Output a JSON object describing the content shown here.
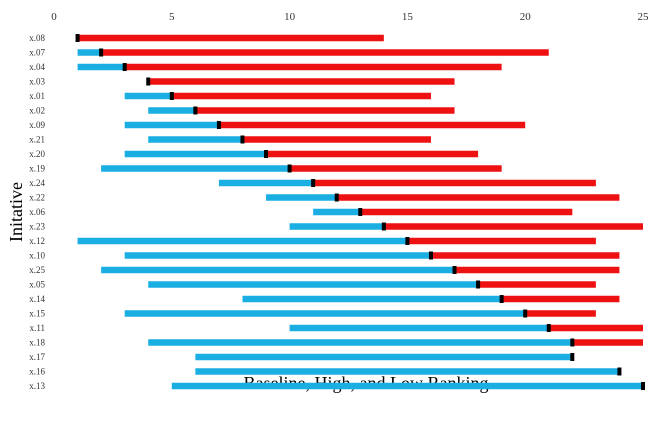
{
  "chart_data": {
    "type": "bar",
    "orientation": "horizontal",
    "title": "",
    "xlabel": "Baseline, High, and Low Ranking",
    "ylabel": "Initative",
    "xlim": [
      0,
      25
    ],
    "xticks": [
      0,
      5,
      10,
      15,
      20,
      25
    ],
    "grid": false,
    "legend": "none",
    "colors": {
      "low_segment": "#1aaee3",
      "high_segment": "#ee1111",
      "baseline_marker": "#000000"
    },
    "categories": [
      "x.08",
      "x.07",
      "x.04",
      "x.03",
      "x.01",
      "x.02",
      "x.09",
      "x.21",
      "x.20",
      "x.19",
      "x.24",
      "x.22",
      "x.06",
      "x.23",
      "x.12",
      "x.10",
      "x.25",
      "x.05",
      "x.14",
      "x.15",
      "x.11",
      "x.18",
      "x.17",
      "x.16",
      "x.13"
    ],
    "series": [
      {
        "role": "low",
        "values": [
          1,
          1,
          1,
          4,
          3,
          4,
          3,
          4,
          3,
          2,
          7,
          9,
          11,
          10,
          1,
          3,
          2,
          4,
          8,
          3,
          10,
          4,
          6,
          6,
          5
        ]
      },
      {
        "role": "baseline",
        "values": [
          1,
          2,
          3,
          4,
          5,
          6,
          7,
          8,
          9,
          10,
          11,
          12,
          13,
          14,
          15,
          16,
          17,
          18,
          19,
          20,
          21,
          22,
          22,
          24,
          25
        ]
      },
      {
        "role": "high",
        "values": [
          14,
          21,
          19,
          17,
          16,
          17,
          20,
          16,
          18,
          19,
          23,
          24,
          22,
          25,
          23,
          24,
          24,
          23,
          24,
          23,
          25,
          25,
          22,
          24,
          25
        ]
      }
    ]
  }
}
